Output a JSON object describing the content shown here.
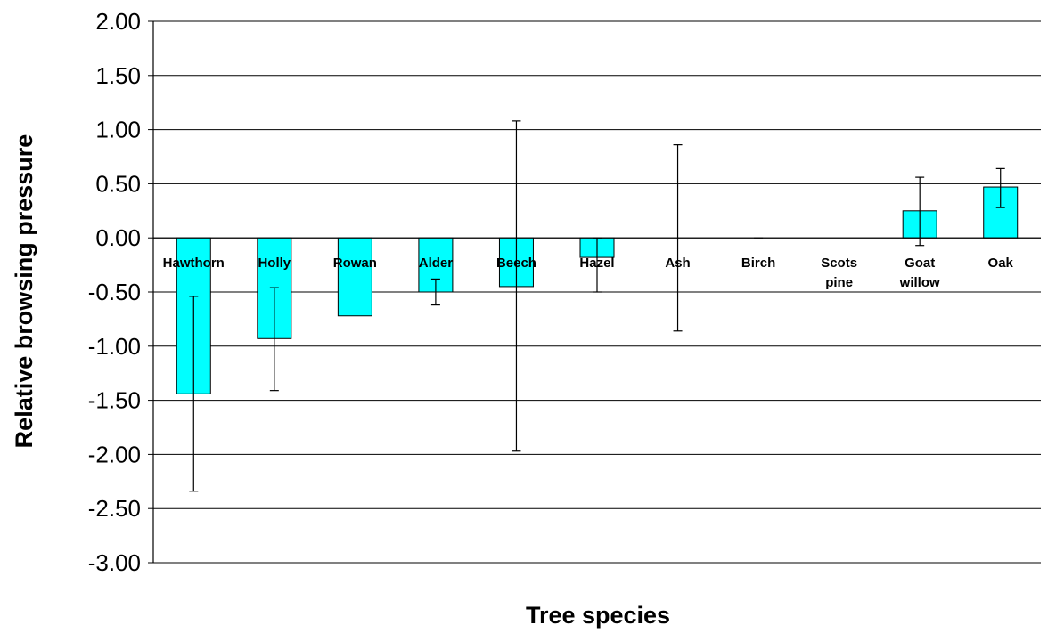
{
  "chart_data": {
    "type": "bar",
    "title": "",
    "xlabel": "Tree species",
    "ylabel": "Relative browsing pressure",
    "ylim": [
      -3.0,
      2.0
    ],
    "y_ticks": [
      "2.00",
      "1.50",
      "1.00",
      "0.50",
      "0.00",
      "-0.50",
      "-1.00",
      "-1.50",
      "-2.00",
      "-2.50",
      "-3.00"
    ],
    "y_tick_values": [
      2.0,
      1.5,
      1.0,
      0.5,
      0.0,
      -0.5,
      -1.0,
      -1.5,
      -2.0,
      -2.5,
      -3.0
    ],
    "grid": true,
    "legend": "none",
    "bar_color": "#00FFFF",
    "categories": [
      [
        "Hawthorn"
      ],
      [
        "Holly"
      ],
      [
        "Rowan"
      ],
      [
        "Alder"
      ],
      [
        "Beech"
      ],
      [
        "Hazel"
      ],
      [
        "Ash"
      ],
      [
        "Birch"
      ],
      [
        "Scots",
        "pine"
      ],
      [
        "Goat",
        "willow"
      ],
      [
        "Oak"
      ]
    ],
    "values": [
      -1.44,
      -0.93,
      -0.72,
      -0.5,
      -0.45,
      -0.18,
      0.0,
      0.0,
      0.0,
      0.25,
      0.47
    ],
    "error_bars": [
      [
        -2.34,
        -0.54
      ],
      [
        -1.41,
        -0.46
      ],
      null,
      [
        -0.62,
        -0.38
      ],
      [
        -1.97,
        1.08
      ],
      [
        -0.5,
        0.0
      ],
      [
        -0.86,
        0.86
      ],
      [
        0.0,
        0.0
      ],
      null,
      [
        -0.07,
        0.56
      ],
      [
        0.28,
        0.64
      ]
    ]
  }
}
